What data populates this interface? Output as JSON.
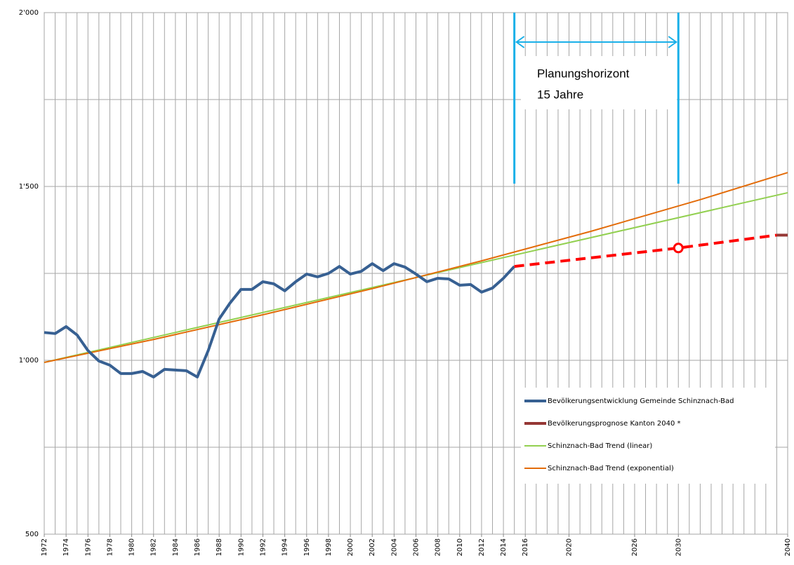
{
  "chart_data": {
    "type": "line",
    "xlim": [
      1972,
      2040
    ],
    "ylim": [
      500,
      2000
    ],
    "yticks": [
      {
        "value": 500,
        "label": "500"
      },
      {
        "value": 1000,
        "label": "1'000"
      },
      {
        "value": 1500,
        "label": "1'500"
      },
      {
        "value": 2000,
        "label": "2'000"
      }
    ],
    "minor_yticks": [
      750,
      1250,
      1750
    ],
    "xticks": [
      1972,
      1974,
      1976,
      1978,
      1980,
      1982,
      1984,
      1986,
      1988,
      1990,
      1992,
      1994,
      1996,
      1998,
      2000,
      2002,
      2004,
      2006,
      2008,
      2010,
      2012,
      2014,
      2016,
      2020,
      2026,
      2030,
      2040
    ],
    "grid": true,
    "legend": "lower right",
    "annotation": {
      "text": [
        "Planungshorizont",
        "15 Jahre"
      ],
      "x": [
        2015,
        2030
      ],
      "color": "#1ab0e8"
    },
    "series": [
      {
        "name": "Schinznach-Bad Trend (linear)",
        "color": "#92d050",
        "width": 2,
        "x": [
          1972,
          2040
        ],
        "values": [
          994,
          1482
        ]
      },
      {
        "name": "Schinznach-Bad Trend (exponential)",
        "color": "#e36c0a",
        "width": 2,
        "x": [
          1972,
          1982,
          1992,
          2002,
          2012,
          2022,
          2032,
          2040
        ],
        "values": [
          994,
          1060,
          1131,
          1206,
          1286,
          1371,
          1462,
          1540
        ]
      },
      {
        "name": "Bevölkerungsentwicklung Gemeinde Schinznach-Bad",
        "color": "#376092",
        "width": 4,
        "x": [
          1972,
          1973,
          1974,
          1975,
          1976,
          1977,
          1978,
          1979,
          1980,
          1981,
          1982,
          1983,
          1984,
          1985,
          1986,
          1987,
          1988,
          1989,
          1990,
          1991,
          1992,
          1993,
          1994,
          1995,
          1996,
          1997,
          1998,
          1999,
          2000,
          2001,
          2002,
          2003,
          2004,
          2005,
          2006,
          2007,
          2008,
          2009,
          2010,
          2011,
          2012,
          2013,
          2014,
          2015
        ],
        "values": [
          1080,
          1077,
          1097,
          1073,
          1028,
          998,
          986,
          962,
          962,
          968,
          952,
          974,
          972,
          970,
          952,
          1028,
          1119,
          1165,
          1204,
          1204,
          1226,
          1220,
          1200,
          1226,
          1248,
          1240,
          1250,
          1270,
          1248,
          1256,
          1278,
          1258,
          1278,
          1268,
          1248,
          1226,
          1236,
          1234,
          1216,
          1218,
          1196,
          1208,
          1236,
          1270
        ]
      },
      {
        "color": "#ff0000",
        "width": 4,
        "dashed": true,
        "marker_index": 1,
        "x": [
          2015,
          2030,
          2039
        ],
        "values": [
          1270,
          1323,
          1360
        ]
      },
      {
        "name": "Bevölkerungsprognose Kanton 2040 *",
        "color": "#953735",
        "width": 4,
        "x": [
          2039,
          2040
        ],
        "values": [
          1360,
          1360
        ]
      }
    ]
  }
}
